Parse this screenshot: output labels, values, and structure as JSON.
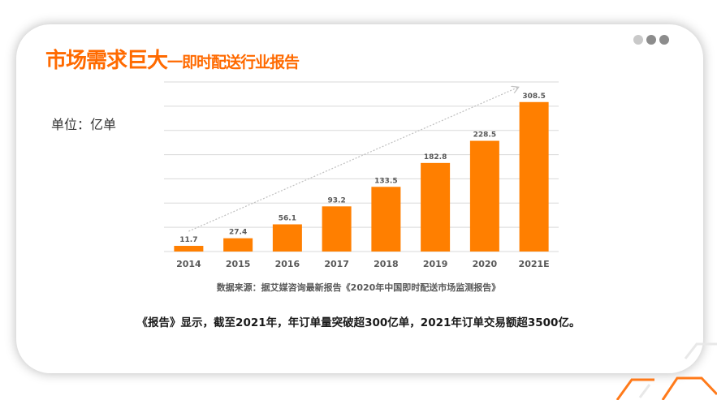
{
  "page": {
    "title_main": "市场需求巨大",
    "title_sub": "一即时配送行业报告",
    "unit": "单位：亿单",
    "source": "数据来源：据艾媒咨询最新报告《2020年中国即时配送市场监测报告》",
    "summary": "《报告》显示，截至2021年，年订单量突破超300亿单，2021年订单交易额超3500亿。"
  },
  "colors": {
    "accent": "#ff6a00",
    "bar": "#ff7f00",
    "grid": "#d9d9d9",
    "label": "#595959"
  },
  "chart_data": {
    "type": "bar",
    "categories": [
      "2014",
      "2015",
      "2016",
      "2017",
      "2018",
      "2019",
      "2020",
      "2021E"
    ],
    "values": [
      11.7,
      27.4,
      56.1,
      93.2,
      133.5,
      182.8,
      228.5,
      308.5
    ],
    "data_labels": [
      "11.7",
      "27.4",
      "56.1",
      "93.2",
      "133.5",
      "182.8",
      "228.5",
      "308.5"
    ],
    "ylim": [
      0,
      350
    ],
    "grid": true,
    "trend_arrow": true
  }
}
